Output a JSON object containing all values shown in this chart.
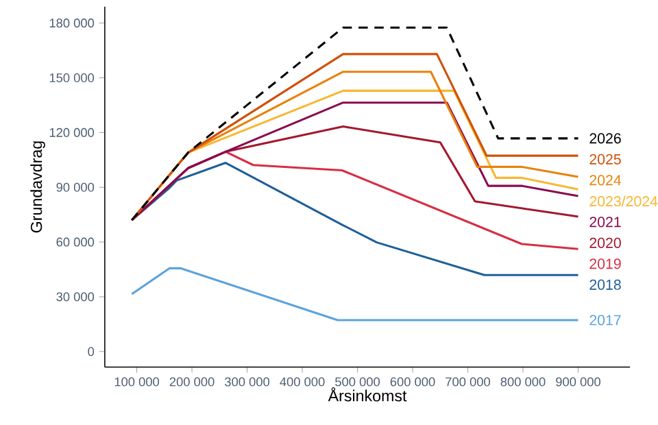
{
  "chart_data": {
    "type": "line",
    "xlabel": "Årsinkomst",
    "ylabel": "Grundavdrag",
    "xlim": [
      42000,
      994000
    ],
    "ylim": [
      -8500,
      189000
    ],
    "xticks": [
      {
        "value": 100000,
        "label": "100 000"
      },
      {
        "value": 200000,
        "label": "200 000"
      },
      {
        "value": 300000,
        "label": "300 000"
      },
      {
        "value": 400000,
        "label": "400 000"
      },
      {
        "value": 500000,
        "label": "500 000"
      },
      {
        "value": 600000,
        "label": "600 000"
      },
      {
        "value": 700000,
        "label": "700 000"
      },
      {
        "value": 800000,
        "label": "800 000"
      },
      {
        "value": 900000,
        "label": "900 000"
      }
    ],
    "yticks": [
      0,
      {
        "value": 30000,
        "label": "30 000"
      },
      {
        "value": 60000,
        "label": "60 000"
      },
      {
        "value": 90000,
        "label": "90 000"
      },
      {
        "value": 120000,
        "label": "120 000"
      },
      {
        "value": 150000,
        "label": "150 000"
      },
      {
        "value": 180000,
        "label": "180 000"
      }
    ],
    "series": [
      {
        "name": "2017",
        "color": "#5ba3dc",
        "x": [
          91000,
          159000,
          180000,
          464000,
          900000
        ],
        "values": [
          31500,
          45600,
          45600,
          17200,
          17200
        ]
      },
      {
        "name": "2018",
        "color": "#1f5f99",
        "x": [
          91000,
          159000,
          172000,
          261000,
          472000,
          535000,
          730000,
          900000
        ],
        "values": [
          72000,
          89600,
          93700,
          103400,
          69500,
          59800,
          41900,
          41900
        ]
      },
      {
        "name": "2019",
        "color": "#d62f45",
        "x": [
          91000,
          193000,
          261000,
          311000,
          472000,
          798000,
          900000
        ],
        "values": [
          72000,
          100500,
          109500,
          102200,
          99300,
          58900,
          56200
        ]
      },
      {
        "name": "2020",
        "color": "#a3182e",
        "x": [
          91000,
          193000,
          261000,
          474000,
          650000,
          713000,
          900000
        ],
        "values": [
          72000,
          100500,
          109500,
          123300,
          114600,
          82300,
          73900
        ]
      },
      {
        "name": "2021",
        "color": "#8b0a50",
        "x": [
          91000,
          193000,
          261000,
          474000,
          662000,
          737000,
          798000,
          900000
        ],
        "values": [
          72000,
          100500,
          109500,
          136400,
          136400,
          90800,
          90800,
          85200
        ]
      },
      {
        "name": "2023/2024",
        "color": "#f8b733",
        "x": [
          91000,
          193000,
          474000,
          675000,
          751000,
          798000,
          900000
        ],
        "values": [
          72000,
          109000,
          142900,
          142900,
          95200,
          95200,
          88900
        ]
      },
      {
        "name": "2024",
        "color": "#e8820c",
        "x": [
          91000,
          193000,
          474000,
          633000,
          717000,
          798000,
          900000
        ],
        "values": [
          72000,
          109000,
          153300,
          153300,
          101200,
          101200,
          95700
        ]
      },
      {
        "name": "2025",
        "color": "#d14f08",
        "x": [
          91000,
          193000,
          474000,
          644000,
          734000,
          900000
        ],
        "values": [
          72000,
          109000,
          163000,
          163000,
          107300,
          107300
        ]
      },
      {
        "name": "2026",
        "color": "#000000",
        "line_style": "dashed",
        "x": [
          91000,
          193000,
          474000,
          662000,
          755000,
          900000
        ],
        "values": [
          72000,
          109000,
          177500,
          177500,
          116800,
          116800
        ]
      }
    ]
  }
}
